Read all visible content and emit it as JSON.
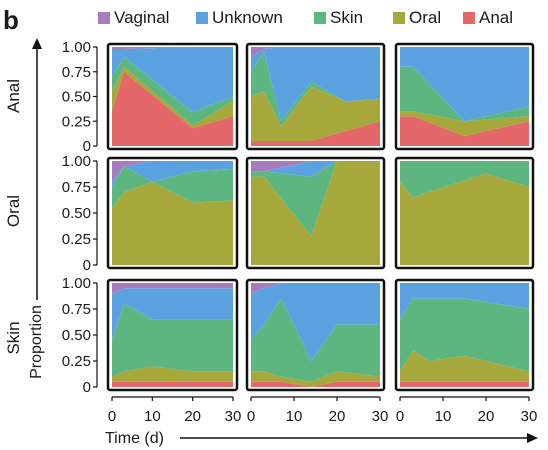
{
  "panel_label": "b",
  "legend": [
    {
      "label": "Vaginal",
      "color": "#a97cbd"
    },
    {
      "label": "Unknown",
      "color": "#5aa3e0"
    },
    {
      "label": "Skin",
      "color": "#5db67f"
    },
    {
      "label": "Oral",
      "color": "#a6a83b"
    },
    {
      "label": "Anal",
      "color": "#e4676a"
    }
  ],
  "row_labels": [
    "Anal",
    "Oral",
    "Skin"
  ],
  "y_axis_label": "Proportion",
  "x_axis_label": "Time (d)",
  "y_ticks": [
    "1.00",
    "0.75",
    "0.50",
    "0.25",
    "0"
  ],
  "x_ticks": [
    "0",
    "10",
    "20",
    "30"
  ],
  "chart_data": {
    "type": "area",
    "stacked": true,
    "xlim": [
      0,
      30
    ],
    "ylim": [
      0,
      1
    ],
    "stack_order_bottom_to_top": [
      "Anal",
      "Oral",
      "Skin",
      "Unknown",
      "Vaginal"
    ],
    "panels": [
      {
        "row": "Anal",
        "col": 1,
        "x": [
          0,
          3,
          20,
          30
        ],
        "series": [
          {
            "name": "Anal",
            "values": [
              0.35,
              0.75,
              0.18,
              0.3
            ]
          },
          {
            "name": "Oral",
            "values": [
              0.2,
              0.05,
              0.03,
              0.15
            ]
          },
          {
            "name": "Skin",
            "values": [
              0.15,
              0.1,
              0.13,
              0.05
            ]
          },
          {
            "name": "Unknown",
            "values": [
              0.28,
              0.08,
              0.66,
              0.5
            ]
          },
          {
            "name": "Vaginal",
            "values": [
              0.02,
              0.02,
              0.0,
              0.0
            ]
          }
        ]
      },
      {
        "row": "Anal",
        "col": 2,
        "x": [
          0,
          3,
          7,
          14,
          22,
          30
        ],
        "series": [
          {
            "name": "Anal",
            "values": [
              0.05,
              0.05,
              0.05,
              0.05,
              0.15,
              0.25
            ]
          },
          {
            "name": "Oral",
            "values": [
              0.45,
              0.5,
              0.15,
              0.55,
              0.3,
              0.23
            ]
          },
          {
            "name": "Skin",
            "values": [
              0.25,
              0.4,
              0.05,
              0.05,
              0.0,
              0.0
            ]
          },
          {
            "name": "Unknown",
            "values": [
              0.15,
              0.03,
              0.75,
              0.35,
              0.55,
              0.52
            ]
          },
          {
            "name": "Vaginal",
            "values": [
              0.1,
              0.02,
              0.0,
              0.0,
              0.0,
              0.0
            ]
          }
        ]
      },
      {
        "row": "Anal",
        "col": 3,
        "x": [
          0,
          3,
          15,
          30
        ],
        "series": [
          {
            "name": "Anal",
            "values": [
              0.3,
              0.3,
              0.1,
              0.25
            ]
          },
          {
            "name": "Oral",
            "values": [
              0.05,
              0.05,
              0.15,
              0.05
            ]
          },
          {
            "name": "Skin",
            "values": [
              0.45,
              0.45,
              0.0,
              0.1
            ]
          },
          {
            "name": "Unknown",
            "values": [
              0.2,
              0.2,
              0.75,
              0.6
            ]
          },
          {
            "name": "Vaginal",
            "values": [
              0.0,
              0.0,
              0.0,
              0.0
            ]
          }
        ]
      },
      {
        "row": "Oral",
        "col": 1,
        "x": [
          0,
          3,
          10,
          20,
          30
        ],
        "series": [
          {
            "name": "Anal",
            "values": [
              0.0,
              0.0,
              0.0,
              0.0,
              0.0
            ]
          },
          {
            "name": "Oral",
            "values": [
              0.55,
              0.7,
              0.8,
              0.6,
              0.62
            ]
          },
          {
            "name": "Skin",
            "values": [
              0.2,
              0.25,
              0.0,
              0.3,
              0.3
            ]
          },
          {
            "name": "Unknown",
            "values": [
              0.05,
              0.0,
              0.2,
              0.1,
              0.08
            ]
          },
          {
            "name": "Vaginal",
            "values": [
              0.2,
              0.05,
              0.0,
              0.0,
              0.0
            ]
          }
        ]
      },
      {
        "row": "Oral",
        "col": 2,
        "x": [
          0,
          3,
          14,
          20,
          30
        ],
        "series": [
          {
            "name": "Anal",
            "values": [
              0.0,
              0.0,
              0.0,
              0.0,
              0.0
            ]
          },
          {
            "name": "Oral",
            "values": [
              0.85,
              0.85,
              0.28,
              1.0,
              1.0
            ]
          },
          {
            "name": "Skin",
            "values": [
              0.05,
              0.05,
              0.57,
              0.0,
              0.0
            ]
          },
          {
            "name": "Unknown",
            "values": [
              0.0,
              0.0,
              0.15,
              0.0,
              0.0
            ]
          },
          {
            "name": "Vaginal",
            "values": [
              0.1,
              0.1,
              0.0,
              0.0,
              0.0
            ]
          }
        ]
      },
      {
        "row": "Oral",
        "col": 3,
        "x": [
          0,
          3,
          20,
          30
        ],
        "series": [
          {
            "name": "Anal",
            "values": [
              0.0,
              0.0,
              0.0,
              0.0
            ]
          },
          {
            "name": "Oral",
            "values": [
              0.8,
              0.65,
              0.88,
              0.75
            ]
          },
          {
            "name": "Skin",
            "values": [
              0.2,
              0.35,
              0.12,
              0.25
            ]
          },
          {
            "name": "Unknown",
            "values": [
              0.0,
              0.0,
              0.0,
              0.0
            ]
          },
          {
            "name": "Vaginal",
            "values": [
              0.0,
              0.0,
              0.0,
              0.0
            ]
          }
        ]
      },
      {
        "row": "Skin",
        "col": 1,
        "x": [
          0,
          3,
          10,
          20,
          30
        ],
        "series": [
          {
            "name": "Anal",
            "values": [
              0.05,
              0.05,
              0.05,
              0.05,
              0.05
            ]
          },
          {
            "name": "Oral",
            "values": [
              0.05,
              0.1,
              0.15,
              0.1,
              0.1
            ]
          },
          {
            "name": "Skin",
            "values": [
              0.35,
              0.65,
              0.45,
              0.5,
              0.5
            ]
          },
          {
            "name": "Unknown",
            "values": [
              0.45,
              0.15,
              0.3,
              0.3,
              0.3
            ]
          },
          {
            "name": "Vaginal",
            "values": [
              0.1,
              0.05,
              0.05,
              0.05,
              0.05
            ]
          }
        ]
      },
      {
        "row": "Skin",
        "col": 2,
        "x": [
          0,
          3,
          7,
          14,
          20,
          30
        ],
        "series": [
          {
            "name": "Anal",
            "values": [
              0.05,
              0.05,
              0.05,
              0.0,
              0.05,
              0.05
            ]
          },
          {
            "name": "Oral",
            "values": [
              0.1,
              0.1,
              0.05,
              0.05,
              0.1,
              0.05
            ]
          },
          {
            "name": "Skin",
            "values": [
              0.3,
              0.45,
              0.75,
              0.2,
              0.45,
              0.5
            ]
          },
          {
            "name": "Unknown",
            "values": [
              0.45,
              0.35,
              0.15,
              0.75,
              0.4,
              0.4
            ]
          },
          {
            "name": "Vaginal",
            "values": [
              0.1,
              0.05,
              0.0,
              0.0,
              0.0,
              0.0
            ]
          }
        ]
      },
      {
        "row": "Skin",
        "col": 3,
        "x": [
          0,
          3,
          7,
          15,
          30
        ],
        "series": [
          {
            "name": "Anal",
            "values": [
              0.05,
              0.05,
              0.05,
              0.05,
              0.05
            ]
          },
          {
            "name": "Oral",
            "values": [
              0.1,
              0.3,
              0.2,
              0.25,
              0.1
            ]
          },
          {
            "name": "Skin",
            "values": [
              0.5,
              0.5,
              0.6,
              0.55,
              0.6
            ]
          },
          {
            "name": "Unknown",
            "values": [
              0.35,
              0.15,
              0.15,
              0.15,
              0.25
            ]
          },
          {
            "name": "Vaginal",
            "values": [
              0.0,
              0.0,
              0.0,
              0.0,
              0.0
            ]
          }
        ]
      }
    ]
  }
}
